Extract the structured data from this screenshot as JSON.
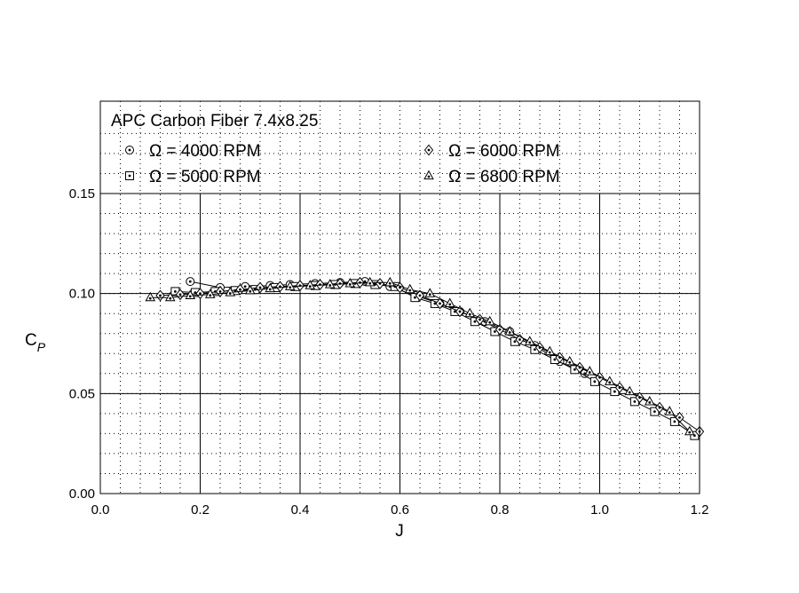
{
  "chart_data": {
    "type": "line",
    "title": "APC Carbon Fiber 7.4x8.25",
    "xlabel": "J",
    "ylabel_main": "C",
    "ylabel_sub": "P",
    "xlim": [
      0.0,
      1.2
    ],
    "ylim": [
      0.0,
      0.18
    ],
    "x_ticks": [
      0.0,
      0.2,
      0.4,
      0.6,
      0.8,
      1.0,
      1.2
    ],
    "x_tick_labels": [
      "0.0",
      "0.2",
      "0.4",
      "0.6",
      "0.8",
      "1.0",
      "1.2"
    ],
    "y_ticks": [
      0.0,
      0.05,
      0.1,
      0.15
    ],
    "y_tick_labels": [
      "0.00",
      "0.05",
      "0.10",
      "0.15"
    ],
    "grid": true,
    "legend_placement": "top",
    "series": [
      {
        "name": "Ω = 4000 RPM",
        "marker": "circle",
        "x": [
          0.18,
          0.24,
          0.29,
          0.34,
          0.38,
          0.43,
          0.48,
          0.53,
          0.58,
          0.63,
          0.68,
          0.72,
          0.77,
          0.82,
          0.87,
          0.92,
          0.97
        ],
        "y": [
          0.106,
          0.103,
          0.1035,
          0.104,
          0.1045,
          0.105,
          0.1055,
          0.106,
          0.1035,
          0.099,
          0.095,
          0.091,
          0.086,
          0.081,
          0.074,
          0.066,
          0.06
        ]
      },
      {
        "name": "Ω = 5000 RPM",
        "marker": "square",
        "x": [
          0.15,
          0.19,
          0.23,
          0.27,
          0.31,
          0.35,
          0.39,
          0.43,
          0.47,
          0.51,
          0.55,
          0.59,
          0.63,
          0.67,
          0.71,
          0.75,
          0.79,
          0.83,
          0.87,
          0.91,
          0.95,
          0.99,
          1.03,
          1.07,
          1.11,
          1.15,
          1.19
        ],
        "y": [
          0.101,
          0.1005,
          0.101,
          0.1015,
          0.102,
          0.103,
          0.1035,
          0.104,
          0.1045,
          0.105,
          0.1045,
          0.1035,
          0.098,
          0.095,
          0.091,
          0.086,
          0.081,
          0.076,
          0.072,
          0.067,
          0.062,
          0.056,
          0.051,
          0.046,
          0.041,
          0.036,
          0.029
        ]
      },
      {
        "name": "Ω = 6000 RPM",
        "marker": "diamond",
        "x": [
          0.12,
          0.16,
          0.2,
          0.24,
          0.28,
          0.32,
          0.36,
          0.4,
          0.44,
          0.48,
          0.52,
          0.56,
          0.6,
          0.64,
          0.68,
          0.72,
          0.76,
          0.8,
          0.84,
          0.88,
          0.92,
          0.96,
          1.0,
          1.04,
          1.08,
          1.12,
          1.16,
          1.2
        ],
        "y": [
          0.099,
          0.0995,
          0.1,
          0.101,
          0.102,
          0.103,
          0.1035,
          0.104,
          0.1045,
          0.105,
          0.1055,
          0.105,
          0.103,
          0.099,
          0.095,
          0.091,
          0.087,
          0.082,
          0.077,
          0.073,
          0.068,
          0.063,
          0.058,
          0.053,
          0.048,
          0.043,
          0.038,
          0.031
        ]
      },
      {
        "name": "Ω = 6800 RPM",
        "marker": "triangle",
        "x": [
          0.1,
          0.14,
          0.18,
          0.22,
          0.26,
          0.3,
          0.34,
          0.38,
          0.42,
          0.46,
          0.5,
          0.54,
          0.58,
          0.62,
          0.66,
          0.7,
          0.74,
          0.78,
          0.82,
          0.86,
          0.9,
          0.94,
          0.98,
          1.02,
          1.06,
          1.1,
          1.14,
          1.18
        ],
        "y": [
          0.098,
          0.098,
          0.099,
          0.0995,
          0.1005,
          0.1015,
          0.1025,
          0.1035,
          0.104,
          0.1045,
          0.105,
          0.1055,
          0.1055,
          0.102,
          0.1,
          0.095,
          0.09,
          0.086,
          0.081,
          0.076,
          0.071,
          0.066,
          0.061,
          0.056,
          0.051,
          0.046,
          0.041,
          0.031
        ]
      }
    ]
  }
}
